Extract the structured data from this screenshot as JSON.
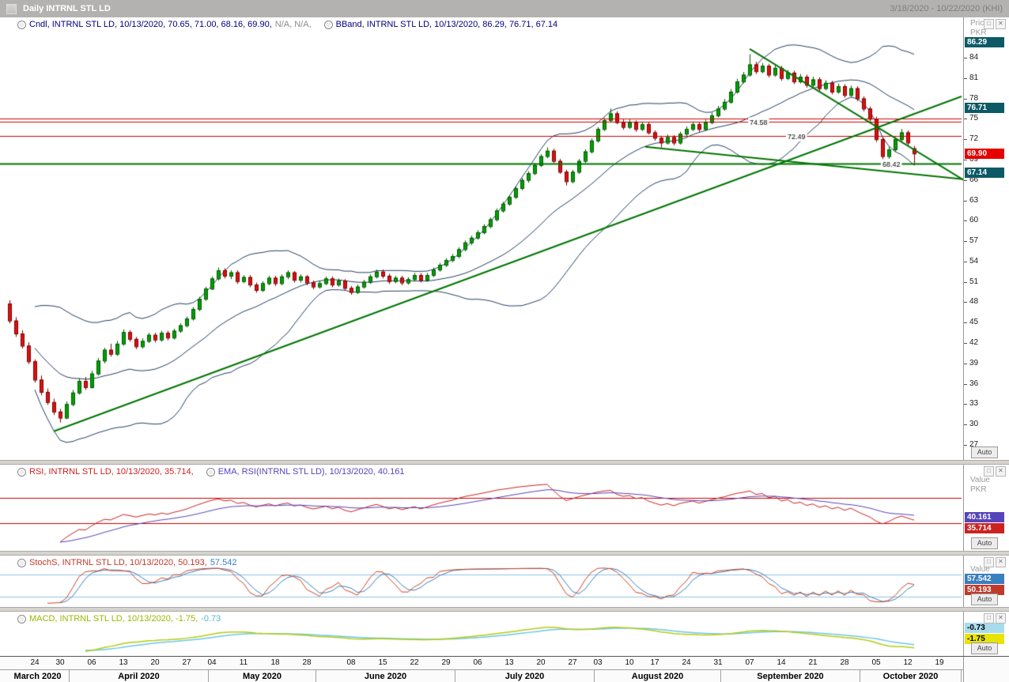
{
  "title_bar": {
    "title": "Daily INTRNL STL LD",
    "date_range": "3/18/2020 - 10/22/2020 (KHI)"
  },
  "panels": {
    "main": {
      "legend": [
        {
          "parts": [
            {
              "text": "Cndl, INTRNL STL LD, 10/13/2020, 70.65, 71.00, 68.16, 69.90,",
              "color": "#00007f"
            },
            {
              "text": " N/A, N/A,",
              "color": "#8c8c8c"
            }
          ]
        },
        {
          "parts": [
            {
              "text": "BBand, INTRNL STL LD, 10/13/2020, 86.29, 76.71, 67.14",
              "color": "#00007f"
            }
          ]
        }
      ],
      "axis_header": [
        "Price",
        "PKR"
      ],
      "ticks": [
        84,
        81,
        78,
        75,
        72,
        69,
        66,
        63,
        60,
        57,
        54,
        51,
        48,
        45,
        42,
        39,
        36,
        33,
        30,
        27
      ],
      "badges": [
        {
          "text": "86.29",
          "value": 86.29,
          "bg": "#0d5a66",
          "fg": "#ffffff"
        },
        {
          "text": "76.71",
          "value": 76.71,
          "bg": "#0d5a66",
          "fg": "#ffffff"
        },
        {
          "text": "69.90",
          "value": 69.9,
          "bg": "#e60000",
          "fg": "#ffffff"
        },
        {
          "text": "67.14",
          "value": 67.14,
          "bg": "#0d5a66",
          "fg": "#ffffff"
        }
      ],
      "auto_label": "Auto"
    },
    "rsi": {
      "legend": [
        {
          "parts": [
            {
              "text": "RSI, INTRNL STL LD, 10/13/2020, 35.714,",
              "color": "#cc2222"
            }
          ]
        },
        {
          "parts": [
            {
              "text": "EMA, RSI(INTRNL STL LD), 10/13/2020, 40.161",
              "color": "#5544bb"
            }
          ]
        }
      ],
      "axis_header": [
        "Value",
        "PKR"
      ],
      "badges": [
        {
          "text": "40.161",
          "value": 40.161,
          "bg": "#5544bb",
          "fg": "#ffffff"
        },
        {
          "text": "35.714",
          "value": 35.714,
          "bg": "#cc2222",
          "fg": "#ffffff"
        }
      ],
      "auto_label": "Auto"
    },
    "stoch": {
      "legend": [
        {
          "parts": [
            {
              "text": "StochS, INTRNL STL LD, 10/13/2020, 50.193,",
              "color": "#c03a2a"
            },
            {
              "text": " 57.542",
              "color": "#3a7fbf"
            }
          ]
        }
      ],
      "axis_header": [
        "Value"
      ],
      "badges": [
        {
          "text": "57.542",
          "value": 57.542,
          "bg": "#3a7fbf",
          "fg": "#ffffff"
        },
        {
          "text": "50.193",
          "value": 50.193,
          "bg": "#c03a2a",
          "fg": "#ffffff"
        }
      ],
      "auto_label": "Auto"
    },
    "macd": {
      "legend": [
        {
          "parts": [
            {
              "text": "MACD, INTRNL STL LD, 10/13/2020, -1.75,",
              "color": "#99b800"
            },
            {
              "text": " -0.73",
              "color": "#55b8d8"
            }
          ]
        }
      ],
      "axis_header": [],
      "badges": [
        {
          "text": "-0.73",
          "value": -0.73,
          "bg": "#a8dcec",
          "fg": "#000000"
        },
        {
          "text": "-1.75",
          "value": -1.75,
          "bg": "#e8e400",
          "fg": "#000000"
        }
      ],
      "auto_label": "Auto"
    }
  },
  "chart_data": {
    "type": "candlestick",
    "title": "Daily INTRNL STL LD",
    "instrument": "INTRNL STL LD",
    "exchange": "KHI",
    "periodicity": "Daily",
    "date_range": "3/18/2020 - 10/22/2020",
    "price_axis": {
      "unit": "PKR",
      "min": 25,
      "max": 88
    },
    "last_bar": {
      "date": "10/13/2020",
      "open": 70.65,
      "high": 71.0,
      "low": 68.16,
      "close": 69.9
    },
    "colors": {
      "up": "#00a000",
      "up_border": "#005800",
      "down": "#e01010",
      "down_border": "#7a0000",
      "bband": "#223f63"
    },
    "slots": 151,
    "ohlc": [
      [
        47.8,
        48.3,
        44.9,
        45.3
      ],
      [
        45.3,
        45.8,
        42.9,
        43.4
      ],
      [
        43.4,
        43.9,
        41.2,
        41.6
      ],
      [
        41.6,
        42.1,
        38.9,
        39.3
      ],
      [
        39.3,
        39.6,
        36.2,
        36.6
      ],
      [
        36.6,
        37.2,
        34.3,
        34.8
      ],
      [
        34.8,
        35.3,
        32.9,
        33.3
      ],
      [
        33.3,
        33.8,
        31.4,
        31.9
      ],
      [
        31.9,
        32.3,
        30.3,
        31.0
      ],
      [
        31.0,
        33.4,
        30.8,
        33.0
      ],
      [
        33.0,
        35.1,
        32.7,
        34.7
      ],
      [
        34.7,
        36.8,
        34.4,
        36.4
      ],
      [
        36.4,
        37.0,
        35.1,
        35.5
      ],
      [
        35.5,
        37.9,
        35.3,
        37.5
      ],
      [
        37.5,
        39.8,
        37.2,
        39.4
      ],
      [
        39.4,
        41.3,
        39.0,
        41.0
      ],
      [
        41.0,
        41.9,
        40.0,
        40.4
      ],
      [
        40.4,
        42.3,
        40.1,
        41.9
      ],
      [
        41.9,
        44.0,
        41.6,
        43.6
      ],
      [
        43.6,
        43.9,
        42.2,
        42.6
      ],
      [
        42.6,
        42.9,
        41.1,
        41.5
      ],
      [
        41.5,
        42.7,
        41.2,
        42.3
      ],
      [
        42.3,
        43.5,
        42.0,
        43.2
      ],
      [
        43.2,
        43.5,
        42.1,
        42.5
      ],
      [
        42.5,
        43.8,
        42.2,
        43.5
      ],
      [
        43.5,
        43.8,
        42.4,
        42.8
      ],
      [
        42.8,
        44.1,
        42.5,
        43.8
      ],
      [
        43.8,
        44.9,
        43.5,
        44.6
      ],
      [
        44.6,
        45.9,
        44.3,
        45.6
      ],
      [
        45.6,
        47.3,
        45.3,
        47.0
      ],
      [
        47.0,
        48.8,
        46.7,
        48.5
      ],
      [
        48.5,
        50.3,
        48.2,
        50.0
      ],
      [
        50.0,
        51.8,
        49.8,
        51.5
      ],
      [
        51.5,
        53.1,
        51.2,
        52.7
      ],
      [
        52.7,
        53.0,
        51.5,
        51.9
      ],
      [
        51.9,
        52.7,
        51.4,
        52.4
      ],
      [
        52.4,
        52.7,
        50.7,
        51.1
      ],
      [
        51.1,
        52.0,
        50.8,
        51.7
      ],
      [
        51.7,
        52.0,
        50.2,
        50.6
      ],
      [
        50.6,
        50.9,
        49.4,
        49.8
      ],
      [
        49.8,
        51.1,
        49.5,
        50.8
      ],
      [
        50.8,
        51.9,
        50.5,
        51.6
      ],
      [
        51.6,
        51.9,
        50.4,
        50.8
      ],
      [
        50.8,
        52.1,
        50.5,
        51.8
      ],
      [
        51.8,
        52.7,
        51.4,
        52.4
      ],
      [
        52.4,
        52.6,
        50.9,
        51.3
      ],
      [
        51.3,
        52.1,
        50.9,
        51.8
      ],
      [
        51.8,
        52.0,
        50.5,
        50.9
      ],
      [
        50.9,
        51.2,
        49.9,
        50.3
      ],
      [
        50.3,
        51.1,
        50.0,
        50.8
      ],
      [
        50.8,
        51.8,
        50.5,
        51.5
      ],
      [
        51.5,
        51.8,
        50.2,
        50.6
      ],
      [
        50.6,
        51.5,
        50.3,
        51.2
      ],
      [
        51.2,
        51.4,
        49.8,
        50.1
      ],
      [
        50.1,
        50.4,
        49.1,
        49.5
      ],
      [
        49.5,
        50.6,
        49.2,
        50.3
      ],
      [
        50.3,
        51.3,
        50.0,
        51.0
      ],
      [
        51.0,
        52.1,
        50.7,
        51.8
      ],
      [
        51.8,
        52.8,
        51.5,
        52.5
      ],
      [
        52.5,
        52.8,
        51.5,
        51.9
      ],
      [
        51.9,
        52.2,
        50.7,
        51.1
      ],
      [
        51.1,
        51.9,
        50.8,
        51.6
      ],
      [
        51.6,
        51.9,
        50.5,
        50.9
      ],
      [
        50.9,
        51.7,
        50.6,
        51.4
      ],
      [
        51.4,
        52.3,
        51.1,
        52.0
      ],
      [
        52.0,
        52.3,
        50.9,
        51.3
      ],
      [
        51.3,
        52.3,
        51.0,
        52.0
      ],
      [
        52.0,
        53.1,
        51.7,
        52.8
      ],
      [
        52.8,
        53.8,
        52.5,
        53.5
      ],
      [
        53.5,
        54.5,
        53.2,
        54.2
      ],
      [
        54.2,
        55.1,
        53.9,
        54.8
      ],
      [
        54.8,
        56.1,
        54.5,
        55.8
      ],
      [
        55.8,
        57.1,
        55.5,
        56.8
      ],
      [
        56.8,
        57.8,
        56.4,
        57.5
      ],
      [
        57.5,
        58.6,
        57.2,
        58.3
      ],
      [
        58.3,
        59.5,
        58.0,
        59.2
      ],
      [
        59.2,
        60.5,
        58.9,
        60.2
      ],
      [
        60.2,
        61.8,
        59.9,
        61.5
      ],
      [
        61.5,
        62.8,
        61.2,
        62.5
      ],
      [
        62.5,
        63.8,
        62.2,
        63.5
      ],
      [
        63.5,
        65.1,
        63.2,
        64.8
      ],
      [
        64.8,
        66.3,
        64.5,
        66.0
      ],
      [
        66.0,
        67.3,
        65.6,
        67.0
      ],
      [
        67.0,
        68.5,
        66.7,
        68.2
      ],
      [
        68.2,
        69.8,
        67.9,
        69.5
      ],
      [
        69.5,
        70.8,
        69.2,
        70.3
      ],
      [
        70.3,
        70.6,
        68.5,
        68.8
      ],
      [
        68.8,
        69.1,
        66.9,
        67.2
      ],
      [
        67.2,
        67.5,
        65.2,
        65.8
      ],
      [
        65.8,
        67.5,
        65.5,
        67.2
      ],
      [
        67.2,
        69.1,
        66.9,
        68.8
      ],
      [
        68.8,
        70.5,
        68.5,
        70.2
      ],
      [
        70.2,
        72.1,
        69.9,
        71.8
      ],
      [
        71.8,
        73.8,
        71.5,
        73.5
      ],
      [
        73.5,
        75.1,
        73.2,
        74.8
      ],
      [
        74.8,
        76.5,
        74.5,
        75.8
      ],
      [
        75.8,
        76.1,
        74.2,
        74.5
      ],
      [
        74.5,
        74.9,
        73.4,
        73.8
      ],
      [
        73.8,
        74.9,
        73.5,
        74.5
      ],
      [
        74.5,
        74.8,
        73.1,
        73.5
      ],
      [
        73.5,
        74.6,
        73.2,
        74.2
      ],
      [
        74.2,
        74.5,
        72.7,
        73.0
      ],
      [
        73.0,
        73.3,
        71.8,
        72.2
      ],
      [
        72.2,
        72.5,
        70.8,
        71.5
      ],
      [
        71.5,
        72.7,
        71.2,
        72.3
      ],
      [
        72.3,
        72.6,
        71.1,
        71.5
      ],
      [
        71.5,
        73.1,
        71.2,
        72.8
      ],
      [
        72.8,
        73.9,
        72.5,
        73.5
      ],
      [
        73.5,
        74.6,
        73.2,
        74.2
      ],
      [
        74.2,
        74.5,
        73.1,
        73.5
      ],
      [
        73.5,
        74.9,
        73.2,
        74.5
      ],
      [
        74.5,
        75.9,
        74.2,
        75.5
      ],
      [
        75.5,
        76.9,
        75.2,
        76.5
      ],
      [
        76.5,
        77.9,
        76.2,
        77.5
      ],
      [
        77.5,
        79.4,
        77.2,
        79.0
      ],
      [
        79.0,
        80.9,
        78.7,
        80.5
      ],
      [
        80.5,
        81.9,
        80.2,
        81.5
      ],
      [
        81.5,
        84.5,
        81.2,
        83.0
      ],
      [
        83.0,
        83.4,
        81.6,
        82.0
      ],
      [
        82.0,
        83.2,
        81.7,
        82.8
      ],
      [
        82.8,
        83.1,
        81.1,
        81.5
      ],
      [
        81.5,
        82.9,
        81.2,
        82.5
      ],
      [
        82.5,
        82.8,
        80.6,
        81.0
      ],
      [
        81.0,
        82.2,
        80.7,
        81.8
      ],
      [
        81.8,
        82.1,
        80.1,
        80.5
      ],
      [
        80.5,
        81.6,
        80.2,
        81.2
      ],
      [
        81.2,
        81.5,
        79.6,
        80.0
      ],
      [
        80.0,
        81.2,
        79.7,
        80.8
      ],
      [
        80.8,
        81.1,
        79.1,
        79.5
      ],
      [
        79.5,
        80.7,
        79.2,
        80.3
      ],
      [
        80.3,
        80.6,
        78.6,
        79.0
      ],
      [
        79.0,
        80.2,
        78.7,
        79.8
      ],
      [
        79.8,
        80.1,
        78.1,
        78.5
      ],
      [
        78.5,
        79.9,
        78.2,
        79.5
      ],
      [
        79.5,
        79.8,
        77.6,
        78.0
      ],
      [
        78.0,
        78.3,
        76.1,
        76.5
      ],
      [
        76.5,
        76.8,
        74.6,
        75.0
      ],
      [
        75.0,
        75.3,
        71.6,
        72.0
      ],
      [
        72.0,
        72.3,
        68.5,
        69.5
      ],
      [
        69.5,
        70.9,
        69.1,
        70.5
      ],
      [
        70.5,
        72.3,
        70.2,
        72.0
      ],
      [
        72.0,
        73.5,
        71.7,
        73.0
      ],
      [
        73.0,
        73.3,
        71.1,
        71.5
      ],
      [
        70.65,
        71.0,
        68.16,
        69.9
      ]
    ],
    "overlays": {
      "bollinger": {
        "period": 20,
        "deviations": 2,
        "last_upper": 86.29,
        "last_middle": 76.71,
        "last_lower": 67.14
      }
    },
    "trendlines": [
      {
        "from_slot": 7,
        "from_price": 29.0,
        "to_slot": 150.5,
        "to_price": 78.3,
        "color": "#007500",
        "width": 2
      },
      {
        "from_slot": 117,
        "from_price": 85.3,
        "to_slot": 150.8,
        "to_price": 66.0,
        "color": "#007500",
        "width": 2
      },
      {
        "from_slot": 100.5,
        "from_price": 70.9,
        "to_slot": 150.8,
        "to_price": 66.1,
        "color": "#007500",
        "width": 2
      }
    ],
    "hlines": [
      {
        "price": 75.05,
        "color": "#cc0000",
        "width": 1
      },
      {
        "price": 74.58,
        "color": "#cc0000",
        "width": 1,
        "label": "74.58",
        "label_slot": 117
      },
      {
        "price": 72.49,
        "color": "#cc0000",
        "width": 1,
        "label": "72.49",
        "label_slot": 123
      },
      {
        "price": 68.42,
        "color": "#007500",
        "width": 2,
        "label": "68.42",
        "label_slot": 138
      }
    ],
    "indicators": {
      "rsi": {
        "period": 14,
        "last": 35.714,
        "ema_period": 14,
        "ema_last": 40.161,
        "levels": [
          70,
          30
        ],
        "level_color": "#cc0000",
        "line_color": "#cc2222",
        "ema_color": "#5544bb",
        "range": [
          0,
          100
        ]
      },
      "stochastic": {
        "k_period": 5,
        "slowing": 3,
        "d_period": 3,
        "last_k": 50.193,
        "last_d": 57.542,
        "levels": [
          80,
          20
        ],
        "level_color": "#8fc2e2",
        "k_color": "#cc4422",
        "d_color": "#3a7fbf",
        "range": [
          0,
          100
        ]
      },
      "macd": {
        "fast": 12,
        "slow": 26,
        "signal_period": 9,
        "last_macd": -1.75,
        "last_signal": -0.73,
        "macd_color": "#b4cc10",
        "signal_color": "#6ec6e8"
      }
    },
    "x_ticks": [
      {
        "label": "24",
        "slot": 4
      },
      {
        "label": "30",
        "slot": 8
      },
      {
        "label": "06",
        "slot": 13
      },
      {
        "label": "13",
        "slot": 18
      },
      {
        "label": "20",
        "slot": 23
      },
      {
        "label": "27",
        "slot": 28
      },
      {
        "label": "04",
        "slot": 32
      },
      {
        "label": "11",
        "slot": 37
      },
      {
        "label": "18",
        "slot": 42
      },
      {
        "label": "28",
        "slot": 47
      },
      {
        "label": "08",
        "slot": 54
      },
      {
        "label": "15",
        "slot": 59
      },
      {
        "label": "22",
        "slot": 64
      },
      {
        "label": "29",
        "slot": 69
      },
      {
        "label": "06",
        "slot": 74
      },
      {
        "label": "13",
        "slot": 79
      },
      {
        "label": "20",
        "slot": 84
      },
      {
        "label": "27",
        "slot": 89
      },
      {
        "label": "03",
        "slot": 93
      },
      {
        "label": "10",
        "slot": 98
      },
      {
        "label": "17",
        "slot": 102
      },
      {
        "label": "24",
        "slot": 107
      },
      {
        "label": "31",
        "slot": 112
      },
      {
        "label": "07",
        "slot": 117
      },
      {
        "label": "14",
        "slot": 122
      },
      {
        "label": "21",
        "slot": 127
      },
      {
        "label": "28",
        "slot": 132
      },
      {
        "label": "05",
        "slot": 137
      },
      {
        "label": "12",
        "slot": 142
      },
      {
        "label": "19",
        "slot": 147
      }
    ],
    "months": [
      {
        "label": "March 2020",
        "start": 0,
        "end": 10
      },
      {
        "label": "April 2020",
        "start": 10,
        "end": 32
      },
      {
        "label": "May 2020",
        "start": 32,
        "end": 49
      },
      {
        "label": "June 2020",
        "start": 49,
        "end": 71
      },
      {
        "label": "July 2020",
        "start": 71,
        "end": 93
      },
      {
        "label": "August 2020",
        "start": 93,
        "end": 113
      },
      {
        "label": "September 2020",
        "start": 113,
        "end": 135
      },
      {
        "label": "October 2020",
        "start": 135,
        "end": 151
      }
    ]
  }
}
